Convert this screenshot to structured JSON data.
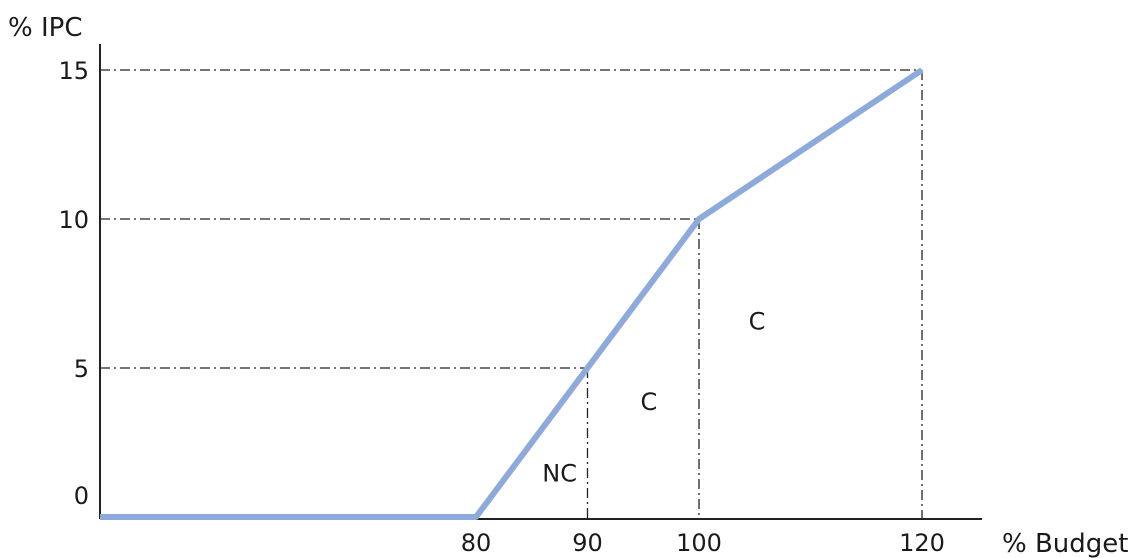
{
  "chart_data": {
    "type": "line",
    "xlabel": "% Budget",
    "ylabel": "% IPC",
    "x_ticks": [
      "80",
      "90",
      "100",
      "120"
    ],
    "y_ticks": [
      "0",
      "5",
      "10",
      "15"
    ],
    "xlim": [
      55,
      125
    ],
    "ylim": [
      0,
      15
    ],
    "series": [
      {
        "x": [
          55,
          80,
          90,
          100,
          120
        ],
        "y": [
          0,
          0,
          5,
          10,
          15
        ]
      }
    ],
    "guides": [
      {
        "x": 90,
        "y": 5
      },
      {
        "x": 100,
        "y": 10
      },
      {
        "x": 120,
        "y": 15
      }
    ],
    "region_labels": [
      {
        "text": "NC",
        "x": 87.5,
        "y": 1.5
      },
      {
        "text": "C",
        "x": 95.5,
        "y": 3.9
      },
      {
        "text": "C",
        "x": 105.2,
        "y": 6.6
      }
    ],
    "colors": {
      "line": "#8eaadb",
      "axis": "#222222",
      "guide": "#222222"
    },
    "grid": false,
    "legend": "none"
  }
}
